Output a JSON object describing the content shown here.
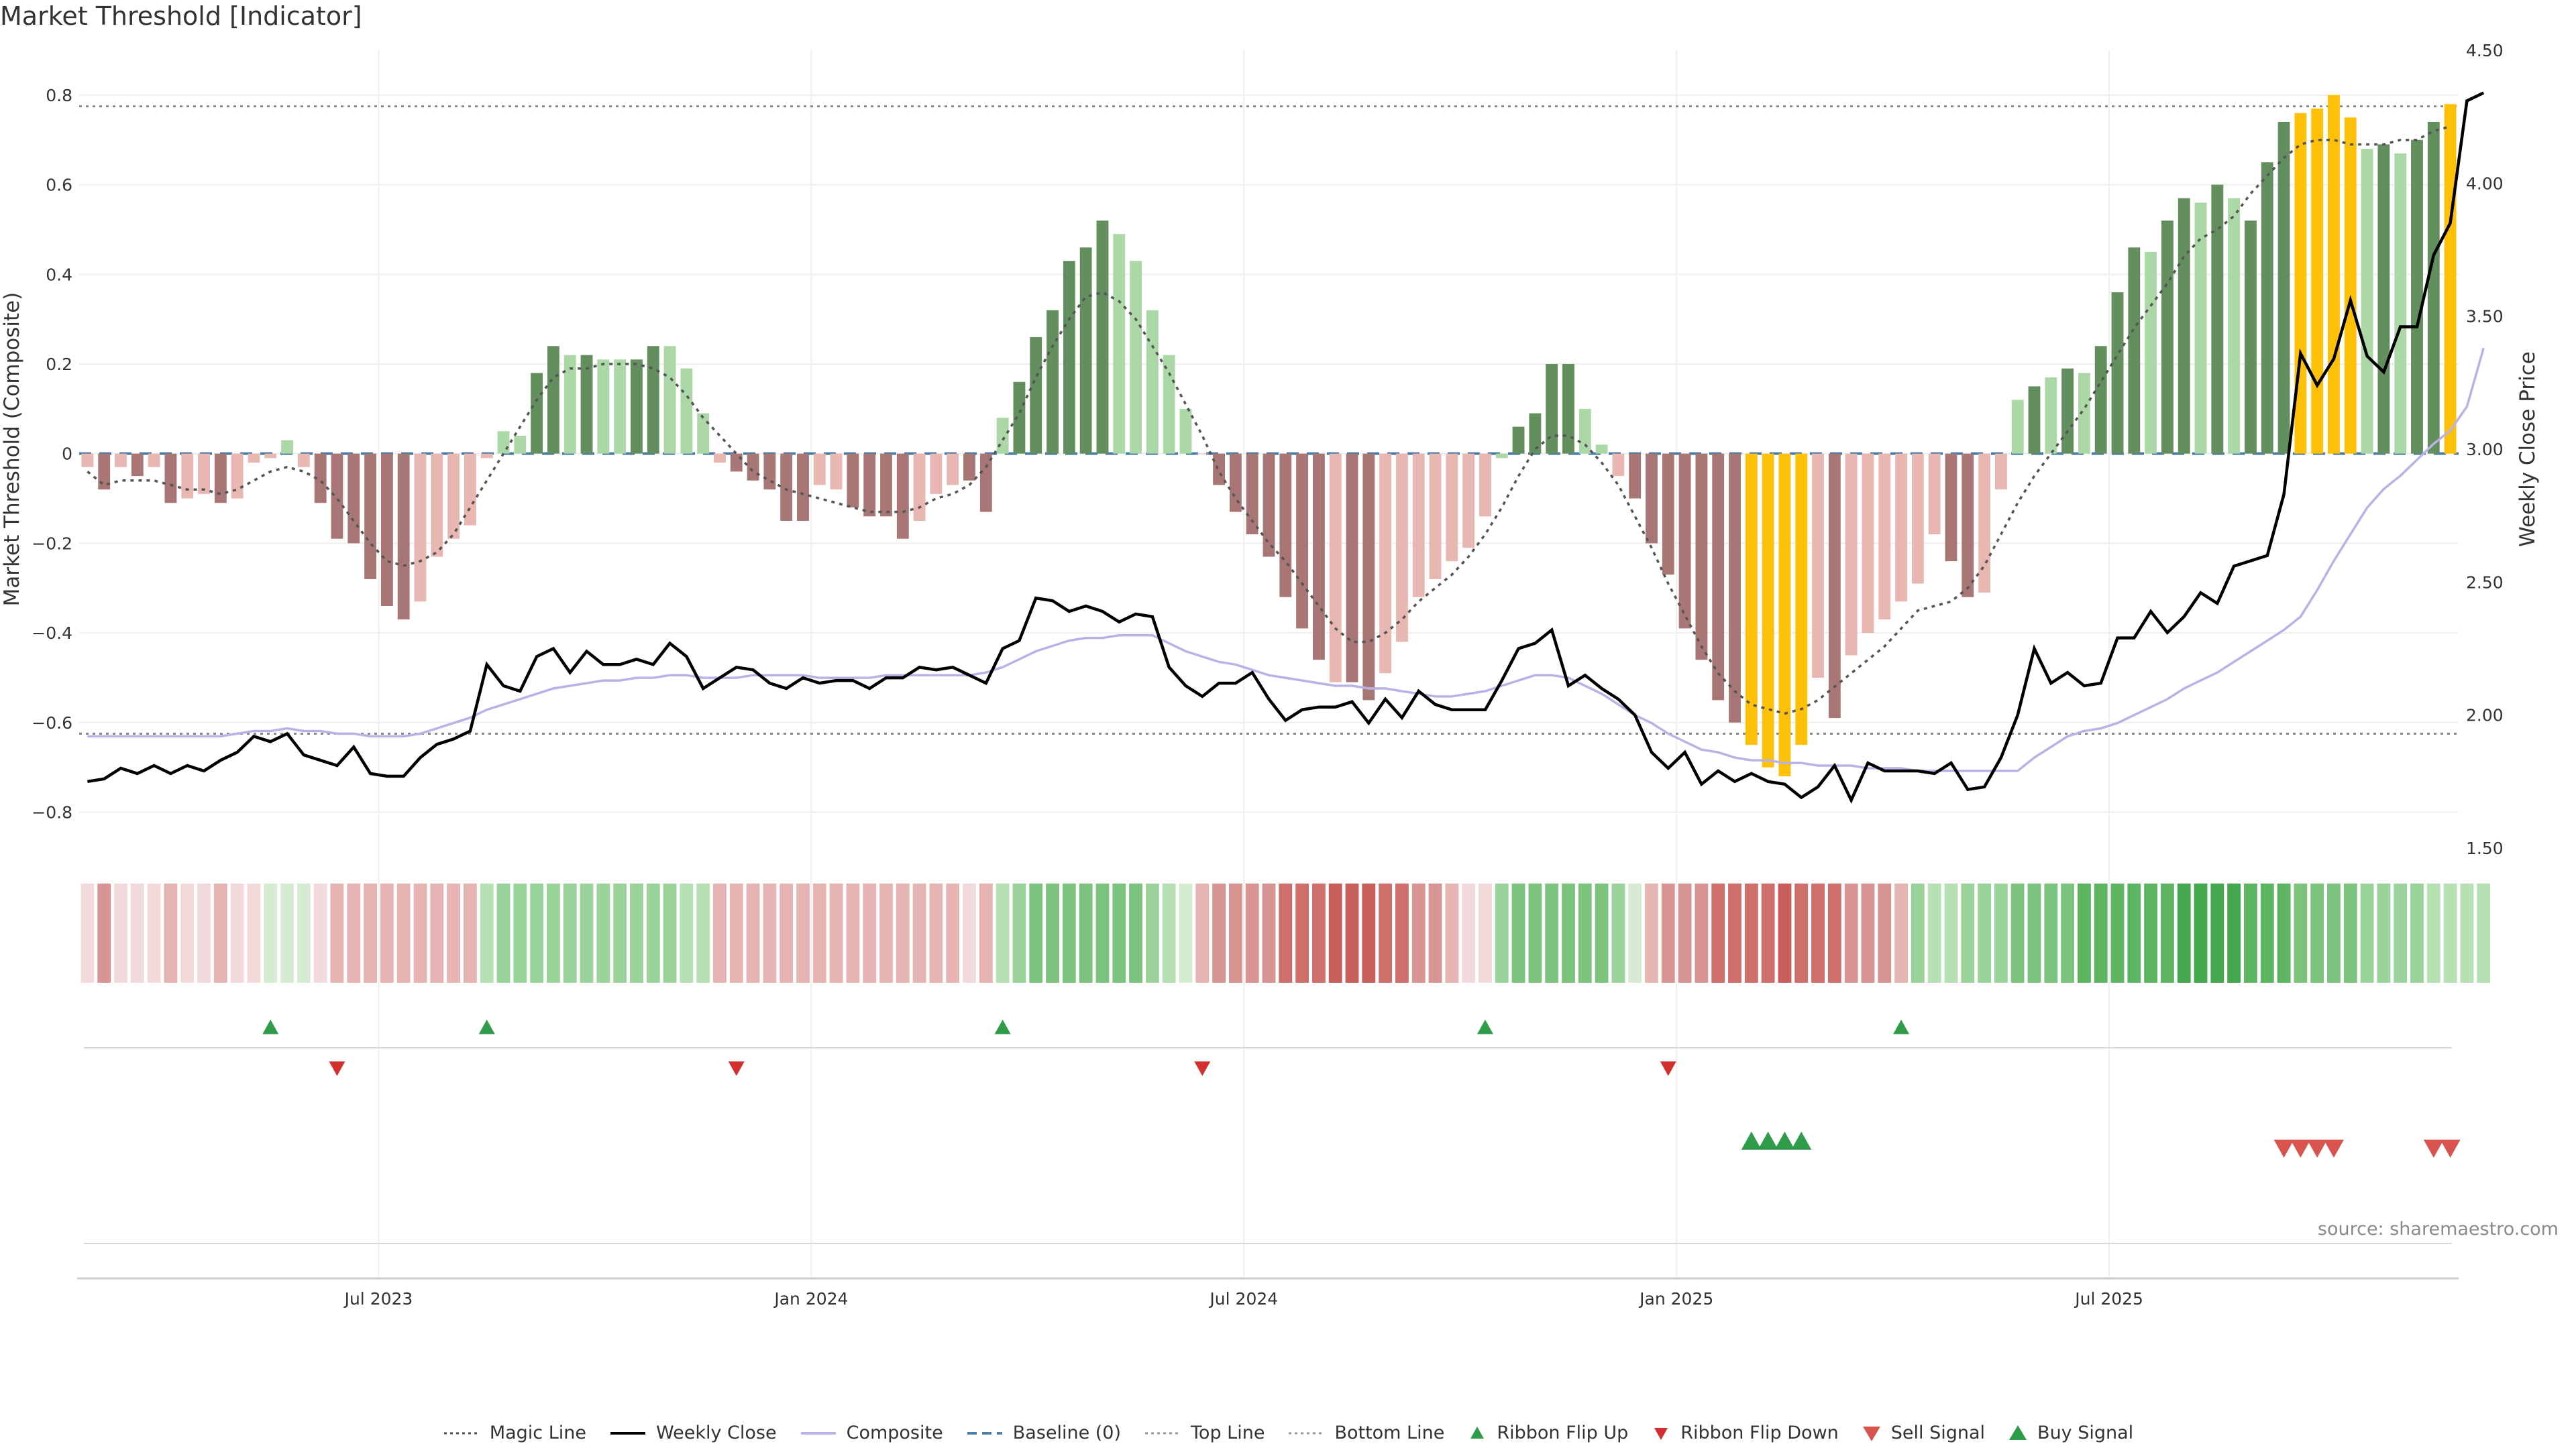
{
  "title": "Market Threshold [Indicator]",
  "source_label": "source: sharemaestro.com",
  "legend": [
    {
      "label": "Magic Line",
      "kind": "dotted",
      "color": "#555555"
    },
    {
      "label": "Weekly Close",
      "kind": "solid",
      "color": "#000000"
    },
    {
      "label": "Composite",
      "kind": "solid",
      "color": "#b9b2e6"
    },
    {
      "label": "Baseline (0)",
      "kind": "dashed",
      "color": "#4e7fa8"
    },
    {
      "label": "Top Line",
      "kind": "dotted",
      "color": "#999999"
    },
    {
      "label": "Bottom Line",
      "kind": "dotted",
      "color": "#999999"
    },
    {
      "label": "Ribbon Flip Up",
      "kind": "tri-up",
      "color": "#2e9c48"
    },
    {
      "label": "Ribbon Flip Down",
      "kind": "tri-down",
      "color": "#d32f2f"
    },
    {
      "label": "Sell Signal",
      "kind": "tri-down-big",
      "color": "#d9534f"
    },
    {
      "label": "Buy Signal",
      "kind": "tri-up-big",
      "color": "#2e9c48"
    }
  ],
  "chart_data": {
    "type": "bar",
    "title": "Market Threshold [Indicator]",
    "ylabel": "Market Threshold (Composite)",
    "y2label": "Weekly Close Price",
    "ylim": [
      -0.88,
      0.9
    ],
    "y2lim": [
      1.5,
      4.5
    ],
    "yticks": [
      -0.8,
      -0.6,
      -0.4,
      -0.2,
      0,
      0.2,
      0.4,
      0.6,
      0.8
    ],
    "y2ticks": [
      1.5,
      2.0,
      2.5,
      3.0,
      3.5,
      4.0,
      4.5
    ],
    "x_ticks": [
      {
        "label": "Jul 2023",
        "week": 18
      },
      {
        "label": "Jan 2024",
        "week": 44
      },
      {
        "label": "Jul 2024",
        "week": 70
      },
      {
        "label": "Jan 2025",
        "week": 96
      },
      {
        "label": "Jul 2025",
        "week": 122
      }
    ],
    "top_line": 0.775,
    "bottom_line": -0.625,
    "baseline": 0,
    "composite": [
      -0.03,
      -0.08,
      -0.03,
      -0.05,
      -0.03,
      -0.11,
      -0.1,
      -0.09,
      -0.11,
      -0.1,
      -0.02,
      -0.01,
      0.03,
      -0.03,
      -0.11,
      -0.19,
      -0.2,
      -0.28,
      -0.34,
      -0.37,
      -0.33,
      -0.23,
      -0.19,
      -0.16,
      -0.01,
      0.05,
      0.04,
      0.18,
      0.24,
      0.22,
      0.22,
      0.21,
      0.21,
      0.21,
      0.24,
      0.24,
      0.19,
      0.09,
      -0.02,
      -0.04,
      -0.06,
      -0.08,
      -0.15,
      -0.15,
      -0.07,
      -0.08,
      -0.12,
      -0.14,
      -0.14,
      -0.19,
      -0.15,
      -0.09,
      -0.07,
      -0.06,
      -0.13,
      0.08,
      0.16,
      0.26,
      0.32,
      0.43,
      0.46,
      0.52,
      0.49,
      0.43,
      0.32,
      0.22,
      0.1,
      0.0,
      -0.07,
      -0.13,
      -0.18,
      -0.23,
      -0.32,
      -0.39,
      -0.46,
      -0.51,
      -0.51,
      -0.55,
      -0.49,
      -0.42,
      -0.32,
      -0.28,
      -0.24,
      -0.21,
      -0.14,
      -0.01,
      0.06,
      0.09,
      0.2,
      0.2,
      0.1,
      0.02,
      -0.05,
      -0.1,
      -0.2,
      -0.27,
      -0.39,
      -0.46,
      -0.55,
      -0.6,
      -0.65,
      -0.7,
      -0.72,
      -0.65,
      -0.5,
      -0.59,
      -0.45,
      -0.4,
      -0.37,
      -0.33,
      -0.29,
      -0.18,
      -0.24,
      -0.32,
      -0.31,
      -0.08,
      0.12,
      0.15,
      0.17,
      0.19,
      0.18,
      0.24,
      0.36,
      0.46,
      0.45,
      0.52,
      0.57,
      0.56,
      0.6,
      0.57,
      0.52,
      0.65,
      0.74,
      0.76,
      0.77,
      0.8,
      0.75,
      0.68,
      0.69,
      0.67,
      0.7,
      0.74,
      0.78
    ],
    "bar_colors": [
      "#e8b7b2",
      "#a87775",
      "#e8b7b2",
      "#a87775",
      "#e8b7b2",
      "#a87775",
      "#e8b7b2",
      "#e8b7b2",
      "#a87775",
      "#e8b7b2",
      "#e8b7b2",
      "#e8b7b2",
      "#acd8a7",
      "#e8b7b2",
      "#a87775",
      "#a87775",
      "#a87775",
      "#a87775",
      "#a87775",
      "#a87775",
      "#e8b7b2",
      "#e8b7b2",
      "#e8b7b2",
      "#e8b7b2",
      "#e8b7b2",
      "#acd8a7",
      "#acd8a7",
      "#628f5d",
      "#628f5d",
      "#acd8a7",
      "#628f5d",
      "#acd8a7",
      "#acd8a7",
      "#628f5d",
      "#628f5d",
      "#acd8a7",
      "#acd8a7",
      "#acd8a7",
      "#e8b7b2",
      "#a87775",
      "#a87775",
      "#a87775",
      "#a87775",
      "#a87775",
      "#e8b7b2",
      "#e8b7b2",
      "#a87775",
      "#a87775",
      "#a87775",
      "#a87775",
      "#e8b7b2",
      "#e8b7b2",
      "#e8b7b2",
      "#a87775",
      "#a87775",
      "#acd8a7",
      "#628f5d",
      "#628f5d",
      "#628f5d",
      "#628f5d",
      "#628f5d",
      "#628f5d",
      "#acd8a7",
      "#acd8a7",
      "#acd8a7",
      "#acd8a7",
      "#acd8a7",
      "#e8b7b2",
      "#a87775",
      "#a87775",
      "#a87775",
      "#a87775",
      "#a87775",
      "#a87775",
      "#a87775",
      "#e8b7b2",
      "#a87775",
      "#a87775",
      "#e8b7b2",
      "#e8b7b2",
      "#e8b7b2",
      "#e8b7b2",
      "#e8b7b2",
      "#e8b7b2",
      "#e8b7b2",
      "#acd8a7",
      "#628f5d",
      "#628f5d",
      "#628f5d",
      "#628f5d",
      "#acd8a7",
      "#acd8a7",
      "#e8b7b2",
      "#a87775",
      "#a87775",
      "#a87775",
      "#a87775",
      "#a87775",
      "#a87775",
      "#a87775",
      "#ffc107",
      "#ffc107",
      "#ffc107",
      "#ffc107",
      "#e8b7b2",
      "#a87775",
      "#e8b7b2",
      "#e8b7b2",
      "#e8b7b2",
      "#e8b7b2",
      "#e8b7b2",
      "#e8b7b2",
      "#a87775",
      "#a87775",
      "#e8b7b2",
      "#e8b7b2",
      "#acd8a7",
      "#628f5d",
      "#acd8a7",
      "#628f5d",
      "#acd8a7",
      "#628f5d",
      "#628f5d",
      "#628f5d",
      "#acd8a7",
      "#628f5d",
      "#628f5d",
      "#acd8a7",
      "#628f5d",
      "#acd8a7",
      "#628f5d",
      "#628f5d",
      "#628f5d",
      "#ffc107",
      "#ffc107",
      "#ffc107",
      "#ffc107",
      "#acd8a7",
      "#628f5d",
      "#acd8a7",
      "#628f5d",
      "#628f5d",
      "#ffc107"
    ],
    "magic_line": [
      -0.04,
      -0.07,
      -0.06,
      -0.06,
      -0.06,
      -0.07,
      -0.08,
      -0.08,
      -0.09,
      -0.08,
      -0.06,
      -0.04,
      -0.03,
      -0.04,
      -0.06,
      -0.1,
      -0.15,
      -0.2,
      -0.24,
      -0.25,
      -0.24,
      -0.22,
      -0.18,
      -0.12,
      -0.06,
      0.0,
      0.06,
      0.12,
      0.17,
      0.19,
      0.19,
      0.2,
      0.2,
      0.2,
      0.19,
      0.17,
      0.13,
      0.08,
      0.04,
      0.0,
      -0.04,
      -0.06,
      -0.08,
      -0.09,
      -0.1,
      -0.11,
      -0.12,
      -0.13,
      -0.13,
      -0.13,
      -0.12,
      -0.1,
      -0.09,
      -0.07,
      -0.03,
      0.03,
      0.09,
      0.17,
      0.24,
      0.3,
      0.35,
      0.36,
      0.34,
      0.3,
      0.24,
      0.18,
      0.11,
      0.04,
      -0.04,
      -0.1,
      -0.15,
      -0.2,
      -0.24,
      -0.29,
      -0.34,
      -0.39,
      -0.42,
      -0.42,
      -0.4,
      -0.37,
      -0.33,
      -0.3,
      -0.27,
      -0.23,
      -0.18,
      -0.12,
      -0.05,
      0.01,
      0.04,
      0.04,
      0.02,
      -0.02,
      -0.07,
      -0.14,
      -0.21,
      -0.29,
      -0.36,
      -0.43,
      -0.49,
      -0.53,
      -0.56,
      -0.57,
      -0.58,
      -0.57,
      -0.55,
      -0.52,
      -0.49,
      -0.46,
      -0.43,
      -0.39,
      -0.35,
      -0.34,
      -0.33,
      -0.3,
      -0.25,
      -0.18,
      -0.11,
      -0.05,
      0.0,
      0.05,
      0.1,
      0.16,
      0.22,
      0.28,
      0.33,
      0.38,
      0.44,
      0.48,
      0.5,
      0.53,
      0.58,
      0.62,
      0.66,
      0.69,
      0.7,
      0.7,
      0.69,
      0.69,
      0.69,
      0.7,
      0.7,
      0.72,
      0.73
    ],
    "weekly_close": [
      1.75,
      1.76,
      1.8,
      1.78,
      1.81,
      1.78,
      1.81,
      1.79,
      1.83,
      1.86,
      1.92,
      1.9,
      1.93,
      1.85,
      1.83,
      1.81,
      1.88,
      1.78,
      1.77,
      1.77,
      1.84,
      1.89,
      1.91,
      1.94,
      2.19,
      2.11,
      2.09,
      2.22,
      2.25,
      2.16,
      2.24,
      2.19,
      2.19,
      2.21,
      2.19,
      2.27,
      2.22,
      2.1,
      2.14,
      2.18,
      2.17,
      2.12,
      2.1,
      2.14,
      2.12,
      2.13,
      2.13,
      2.1,
      2.14,
      2.14,
      2.18,
      2.17,
      2.18,
      2.15,
      2.12,
      2.25,
      2.28,
      2.44,
      2.43,
      2.39,
      2.41,
      2.39,
      2.35,
      2.38,
      2.37,
      2.18,
      2.11,
      2.07,
      2.12,
      2.12,
      2.16,
      2.06,
      1.98,
      2.02,
      2.03,
      2.03,
      2.05,
      1.97,
      2.06,
      1.99,
      2.09,
      2.04,
      2.02,
      2.02,
      2.02,
      2.13,
      2.25,
      2.27,
      2.32,
      2.11,
      2.15,
      2.1,
      2.06,
      2.0,
      1.86,
      1.8,
      1.86,
      1.74,
      1.79,
      1.75,
      1.78,
      1.75,
      1.74,
      1.69,
      1.73,
      1.81,
      1.68,
      1.82,
      1.79,
      1.79,
      1.79,
      1.78,
      1.82,
      1.72,
      1.73,
      1.84,
      2.0,
      2.25,
      2.12,
      2.16,
      2.11,
      2.12,
      2.29,
      2.29,
      2.39,
      2.31,
      2.37,
      2.46,
      2.42,
      2.56,
      2.58,
      2.6,
      2.83,
      3.36,
      3.24,
      3.34,
      3.56,
      3.35,
      3.29,
      3.46,
      3.46,
      3.73,
      3.85,
      4.31,
      4.34
    ],
    "composite_line": [
      1.92,
      1.92,
      1.92,
      1.92,
      1.92,
      1.92,
      1.92,
      1.92,
      1.92,
      1.93,
      1.94,
      1.94,
      1.95,
      1.94,
      1.94,
      1.93,
      1.93,
      1.92,
      1.92,
      1.92,
      1.93,
      1.95,
      1.97,
      1.99,
      2.02,
      2.04,
      2.06,
      2.08,
      2.1,
      2.11,
      2.12,
      2.13,
      2.13,
      2.14,
      2.14,
      2.15,
      2.15,
      2.14,
      2.14,
      2.14,
      2.15,
      2.15,
      2.15,
      2.15,
      2.14,
      2.14,
      2.14,
      2.14,
      2.15,
      2.15,
      2.15,
      2.15,
      2.15,
      2.15,
      2.16,
      2.18,
      2.21,
      2.24,
      2.26,
      2.28,
      2.29,
      2.29,
      2.3,
      2.3,
      2.3,
      2.27,
      2.24,
      2.22,
      2.2,
      2.19,
      2.17,
      2.15,
      2.14,
      2.13,
      2.12,
      2.11,
      2.11,
      2.1,
      2.1,
      2.09,
      2.08,
      2.07,
      2.07,
      2.08,
      2.09,
      2.11,
      2.13,
      2.15,
      2.15,
      2.14,
      2.11,
      2.08,
      2.04,
      2.0,
      1.97,
      1.93,
      1.9,
      1.87,
      1.86,
      1.84,
      1.83,
      1.83,
      1.82,
      1.82,
      1.81,
      1.81,
      1.81,
      1.8,
      1.8,
      1.8,
      1.79,
      1.79,
      1.79,
      1.79,
      1.79,
      1.79,
      1.79,
      1.84,
      1.88,
      1.92,
      1.94,
      1.95,
      1.97,
      2.0,
      2.03,
      2.06,
      2.1,
      2.13,
      2.16,
      2.2,
      2.24,
      2.28,
      2.32,
      2.37,
      2.47,
      2.58,
      2.68,
      2.78,
      2.85,
      2.9,
      2.96,
      3.02,
      3.07,
      3.16,
      3.38
    ],
    "ribbon_colors": [
      "#f3dada",
      "#d89593",
      "#f3dada",
      "#f3dada",
      "#f3dada",
      "#e6b4b3",
      "#f3dada",
      "#f3dada",
      "#e6b4b3",
      "#f3dada",
      "#f3dada",
      "#d5ecd3",
      "#d5ecd3",
      "#d5ecd3",
      "#f3dada",
      "#e6b4b3",
      "#e6b4b3",
      "#e6b4b3",
      "#e6b4b3",
      "#e6b4b3",
      "#e6b4b3",
      "#e6b4b3",
      "#e6b4b3",
      "#e6b4b3",
      "#b7e0b3",
      "#9bd49a",
      "#9bd49a",
      "#9bd49a",
      "#9bd49a",
      "#9bd49a",
      "#9bd49a",
      "#9bd49a",
      "#9bd49a",
      "#9bd49a",
      "#9bd49a",
      "#9bd49a",
      "#b7e0b3",
      "#b7e0b3",
      "#e6b4b3",
      "#e6b4b3",
      "#e6b4b3",
      "#e6b4b3",
      "#e6b4b3",
      "#e6b4b3",
      "#e6b4b3",
      "#e6b4b3",
      "#e6b4b3",
      "#e6b4b3",
      "#e6b4b3",
      "#e6b4b3",
      "#e6b4b3",
      "#e6b4b3",
      "#e6b4b3",
      "#f3dada",
      "#e6b4b3",
      "#b7e0b3",
      "#9bd49a",
      "#7cc47e",
      "#7cc47e",
      "#7cc47e",
      "#7cc47e",
      "#7cc47e",
      "#7cc47e",
      "#7cc47e",
      "#9bd49a",
      "#b7e0b3",
      "#d5ecd3",
      "#e6b4b3",
      "#d89593",
      "#d89593",
      "#d89593",
      "#d89593",
      "#cf6f6b",
      "#cf6f6b",
      "#cf6f6b",
      "#c85f5b",
      "#c85f5b",
      "#c85f5b",
      "#cf6f6b",
      "#cf6f6b",
      "#d89593",
      "#d89593",
      "#e6b4b3",
      "#f3dada",
      "#f3dada",
      "#9bd49a",
      "#7cc47e",
      "#7cc47e",
      "#7cc47e",
      "#7cc47e",
      "#7cc47e",
      "#7cc47e",
      "#9bd49a",
      "#d5ecd3",
      "#e6b4b3",
      "#d89593",
      "#d89593",
      "#d89593",
      "#cf6f6b",
      "#cf6f6b",
      "#cf6f6b",
      "#cf6f6b",
      "#c85f5b",
      "#cf6f6b",
      "#cf6f6b",
      "#cf6f6b",
      "#d89593",
      "#d89593",
      "#d89593",
      "#e6b4b3",
      "#9bd49a",
      "#b7e0b3",
      "#b7e0b3",
      "#9bd49a",
      "#9bd49a",
      "#9bd49a",
      "#7cc47e",
      "#7cc47e",
      "#7cc47e",
      "#7cc47e",
      "#5db562",
      "#5db562",
      "#5db562",
      "#5db562",
      "#5db562",
      "#5db562",
      "#45a84f",
      "#45a84f",
      "#45a84f",
      "#45a84f",
      "#5db562",
      "#5db562",
      "#5db562",
      "#7cc47e",
      "#7cc47e",
      "#7cc47e",
      "#7cc47e",
      "#9bd49a",
      "#9bd49a",
      "#9bd49a",
      "#9bd49a",
      "#b7e0b3",
      "#b7e0b3",
      "#b7e0b3",
      "#b7e0b3"
    ],
    "ribbon_flip_up_weeks": [
      11,
      24,
      55,
      84,
      109
    ],
    "ribbon_flip_down_weeks": [
      15,
      39,
      67,
      95
    ],
    "buy_signal_weeks": [
      100,
      101,
      102,
      103
    ],
    "sell_signal_weeks": [
      132,
      133,
      134,
      135,
      141,
      142
    ]
  }
}
